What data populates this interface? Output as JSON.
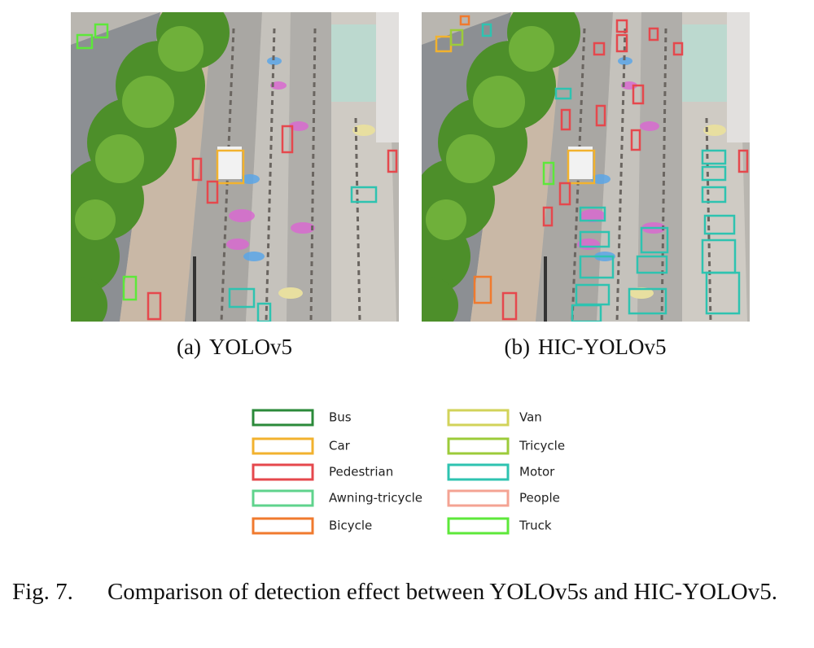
{
  "figure": {
    "panels": [
      {
        "label": "(a)",
        "title": "YOLOv5"
      },
      {
        "label": "(b)",
        "title": "HIC-YOLOv5"
      }
    ],
    "legend": [
      {
        "label": "Bus",
        "color": "#2b8a3a"
      },
      {
        "label": "Car",
        "color": "#f2b22e"
      },
      {
        "label": "Pedestrian",
        "color": "#e5484d"
      },
      {
        "label": "Awning-tricycle",
        "color": "#5fd38c"
      },
      {
        "label": "Bicycle",
        "color": "#f07a2e"
      },
      {
        "label": "Van",
        "color": "#d2d35a"
      },
      {
        "label": "Tricycle",
        "color": "#9ccb3a"
      },
      {
        "label": "Motor",
        "color": "#2ec3b0"
      },
      {
        "label": "People",
        "color": "#f4a393"
      },
      {
        "label": "Truck",
        "color": "#5de83a"
      }
    ],
    "caption": {
      "label": "Fig. 7.",
      "text": "Comparison of detection effect between YOLOv5s and HIC-YOLOv5."
    }
  }
}
